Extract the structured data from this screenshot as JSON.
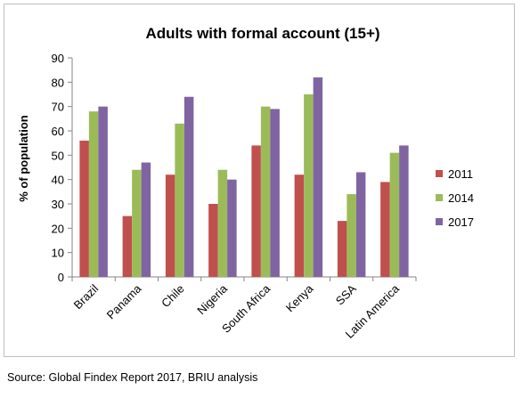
{
  "chart_data": {
    "type": "bar",
    "title": "Adults with formal account (15+)",
    "xlabel": "",
    "ylabel": "% of population",
    "ylim": [
      0,
      90
    ],
    "yticks": [
      0,
      10,
      20,
      30,
      40,
      50,
      60,
      70,
      80,
      90
    ],
    "grid": false,
    "legend_position": "right",
    "categories": [
      "Brazil",
      "Panama",
      "Chile",
      "Nigeria",
      "South Africa",
      "Kenya",
      "SSA",
      "Latin America"
    ],
    "series": [
      {
        "name": "2011",
        "color": "#c0504d",
        "values": [
          56,
          25,
          42,
          30,
          54,
          42,
          23,
          39
        ]
      },
      {
        "name": "2014",
        "color": "#9bbb59",
        "values": [
          68,
          44,
          63,
          44,
          70,
          75,
          34,
          51
        ]
      },
      {
        "name": "2017",
        "color": "#8064a2",
        "values": [
          70,
          47,
          74,
          40,
          69,
          82,
          43,
          54
        ]
      }
    ]
  },
  "source": "Source: Global Findex Report 2017, BRIU analysis"
}
